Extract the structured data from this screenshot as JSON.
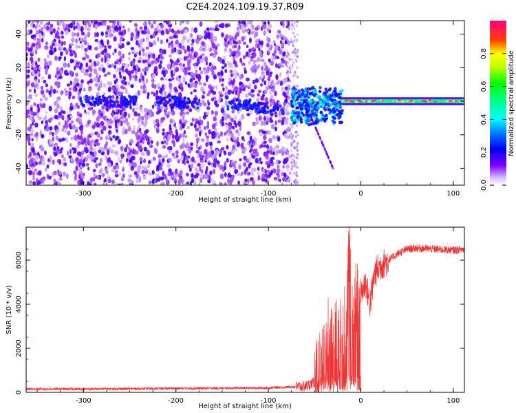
{
  "figure": {
    "title": "C2E4.2024.109.19.37.R09"
  },
  "chart_data": [
    {
      "type": "heatmap",
      "title": "C2E4.2024.109.19.37.R09",
      "xlabel": "Height of straight line (km)",
      "ylabel": "Frequency (Hz)",
      "xlim": [
        -362,
        112
      ],
      "ylim": [
        -50,
        48
      ],
      "x_ticks": [
        -300,
        -200,
        -100,
        0,
        100
      ],
      "y_ticks": [
        -40,
        -20,
        0,
        20,
        40
      ],
      "grid": false,
      "colorbar": {
        "label": "Normalized spectral amplitude",
        "range": [
          0.0,
          1.0
        ],
        "ticks": [
          0.0,
          0.2,
          0.4,
          0.6,
          0.8
        ],
        "colormap": [
          "#ffffff",
          "#8000ff",
          "#0000ff",
          "#00ffff",
          "#00ff00",
          "#ffff00",
          "#ff0000",
          "#ff0080"
        ]
      },
      "description_features": {
        "noise_region_x": [
          -362,
          -78
        ],
        "noise_frequency_range": [
          -50,
          48
        ],
        "signal_line_frequency": 0,
        "strong_signal_x": [
          -20,
          112
        ],
        "transition_x": [
          -75,
          -20
        ]
      }
    },
    {
      "type": "line",
      "xlabel": "Height of straight line (km)",
      "ylabel": "SNR (10 * v/v)",
      "xlim": [
        -362,
        112
      ],
      "ylim": [
        0,
        7500
      ],
      "x_ticks": [
        -300,
        -200,
        -100,
        0,
        100
      ],
      "y_ticks": [
        0,
        2000,
        4000,
        6000
      ],
      "grid": false,
      "color": "#ee3333",
      "series": [
        {
          "x": [
            -362,
            -300,
            -200,
            -100,
            -60,
            -50,
            -45,
            -40,
            -35,
            -30,
            -25,
            -20,
            -15,
            -12,
            -10,
            -8,
            -5,
            0,
            5,
            10,
            15,
            20,
            30,
            40,
            50,
            60,
            80,
            100,
            112
          ],
          "values": [
            150,
            150,
            180,
            200,
            280,
            450,
            900,
            1800,
            3000,
            2200,
            2800,
            2500,
            3600,
            7000,
            3500,
            4000,
            4200,
            4400,
            5000,
            4000,
            5400,
            5700,
            6000,
            6300,
            6500,
            6550,
            6500,
            6450,
            6500
          ]
        }
      ]
    }
  ]
}
